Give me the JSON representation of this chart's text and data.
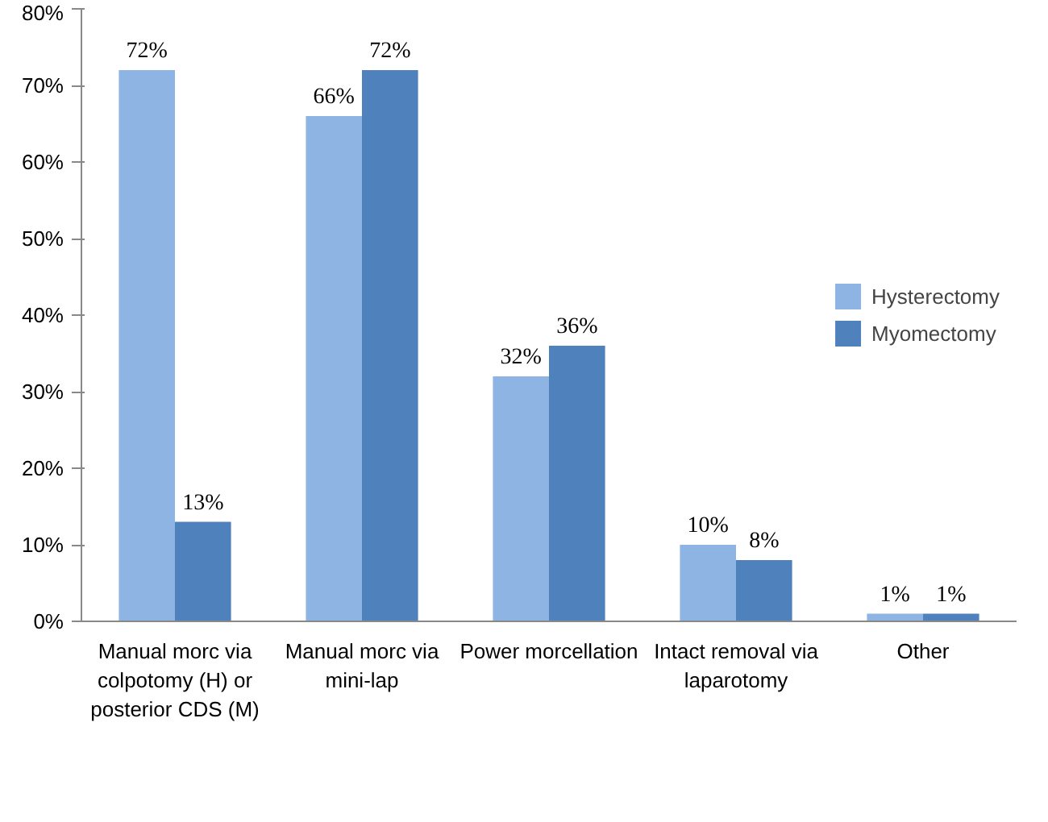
{
  "chart_data": {
    "type": "bar",
    "categories": [
      "Manual morc via colpotomy (H) or posterior CDS (M)",
      "Manual morc via mini-lap",
      "Power morcellation",
      "Intact removal via laparotomy",
      "Other"
    ],
    "series": [
      {
        "name": "Hysterectomy",
        "color": "#8eb4e3",
        "values": [
          72,
          66,
          32,
          10,
          1
        ],
        "value_labels": [
          "72%",
          "66%",
          "32%",
          "10%",
          "1%"
        ]
      },
      {
        "name": "Myomectomy",
        "color": "#4f81bd",
        "values": [
          13,
          72,
          36,
          8,
          1
        ],
        "value_labels": [
          "13%",
          "72%",
          "36%",
          "8%",
          "1%"
        ]
      }
    ],
    "ylim": [
      0,
      80
    ],
    "yticks": [
      {
        "value": 0,
        "label": "0%"
      },
      {
        "value": 10,
        "label": "10%"
      },
      {
        "value": 20,
        "label": "20%"
      },
      {
        "value": 30,
        "label": "30%"
      },
      {
        "value": 40,
        "label": "40%"
      },
      {
        "value": 50,
        "label": "50%"
      },
      {
        "value": 60,
        "label": "60%"
      },
      {
        "value": 70,
        "label": "70%"
      },
      {
        "value": 80,
        "label": "80%"
      }
    ],
    "legend": "right",
    "grid": false
  }
}
